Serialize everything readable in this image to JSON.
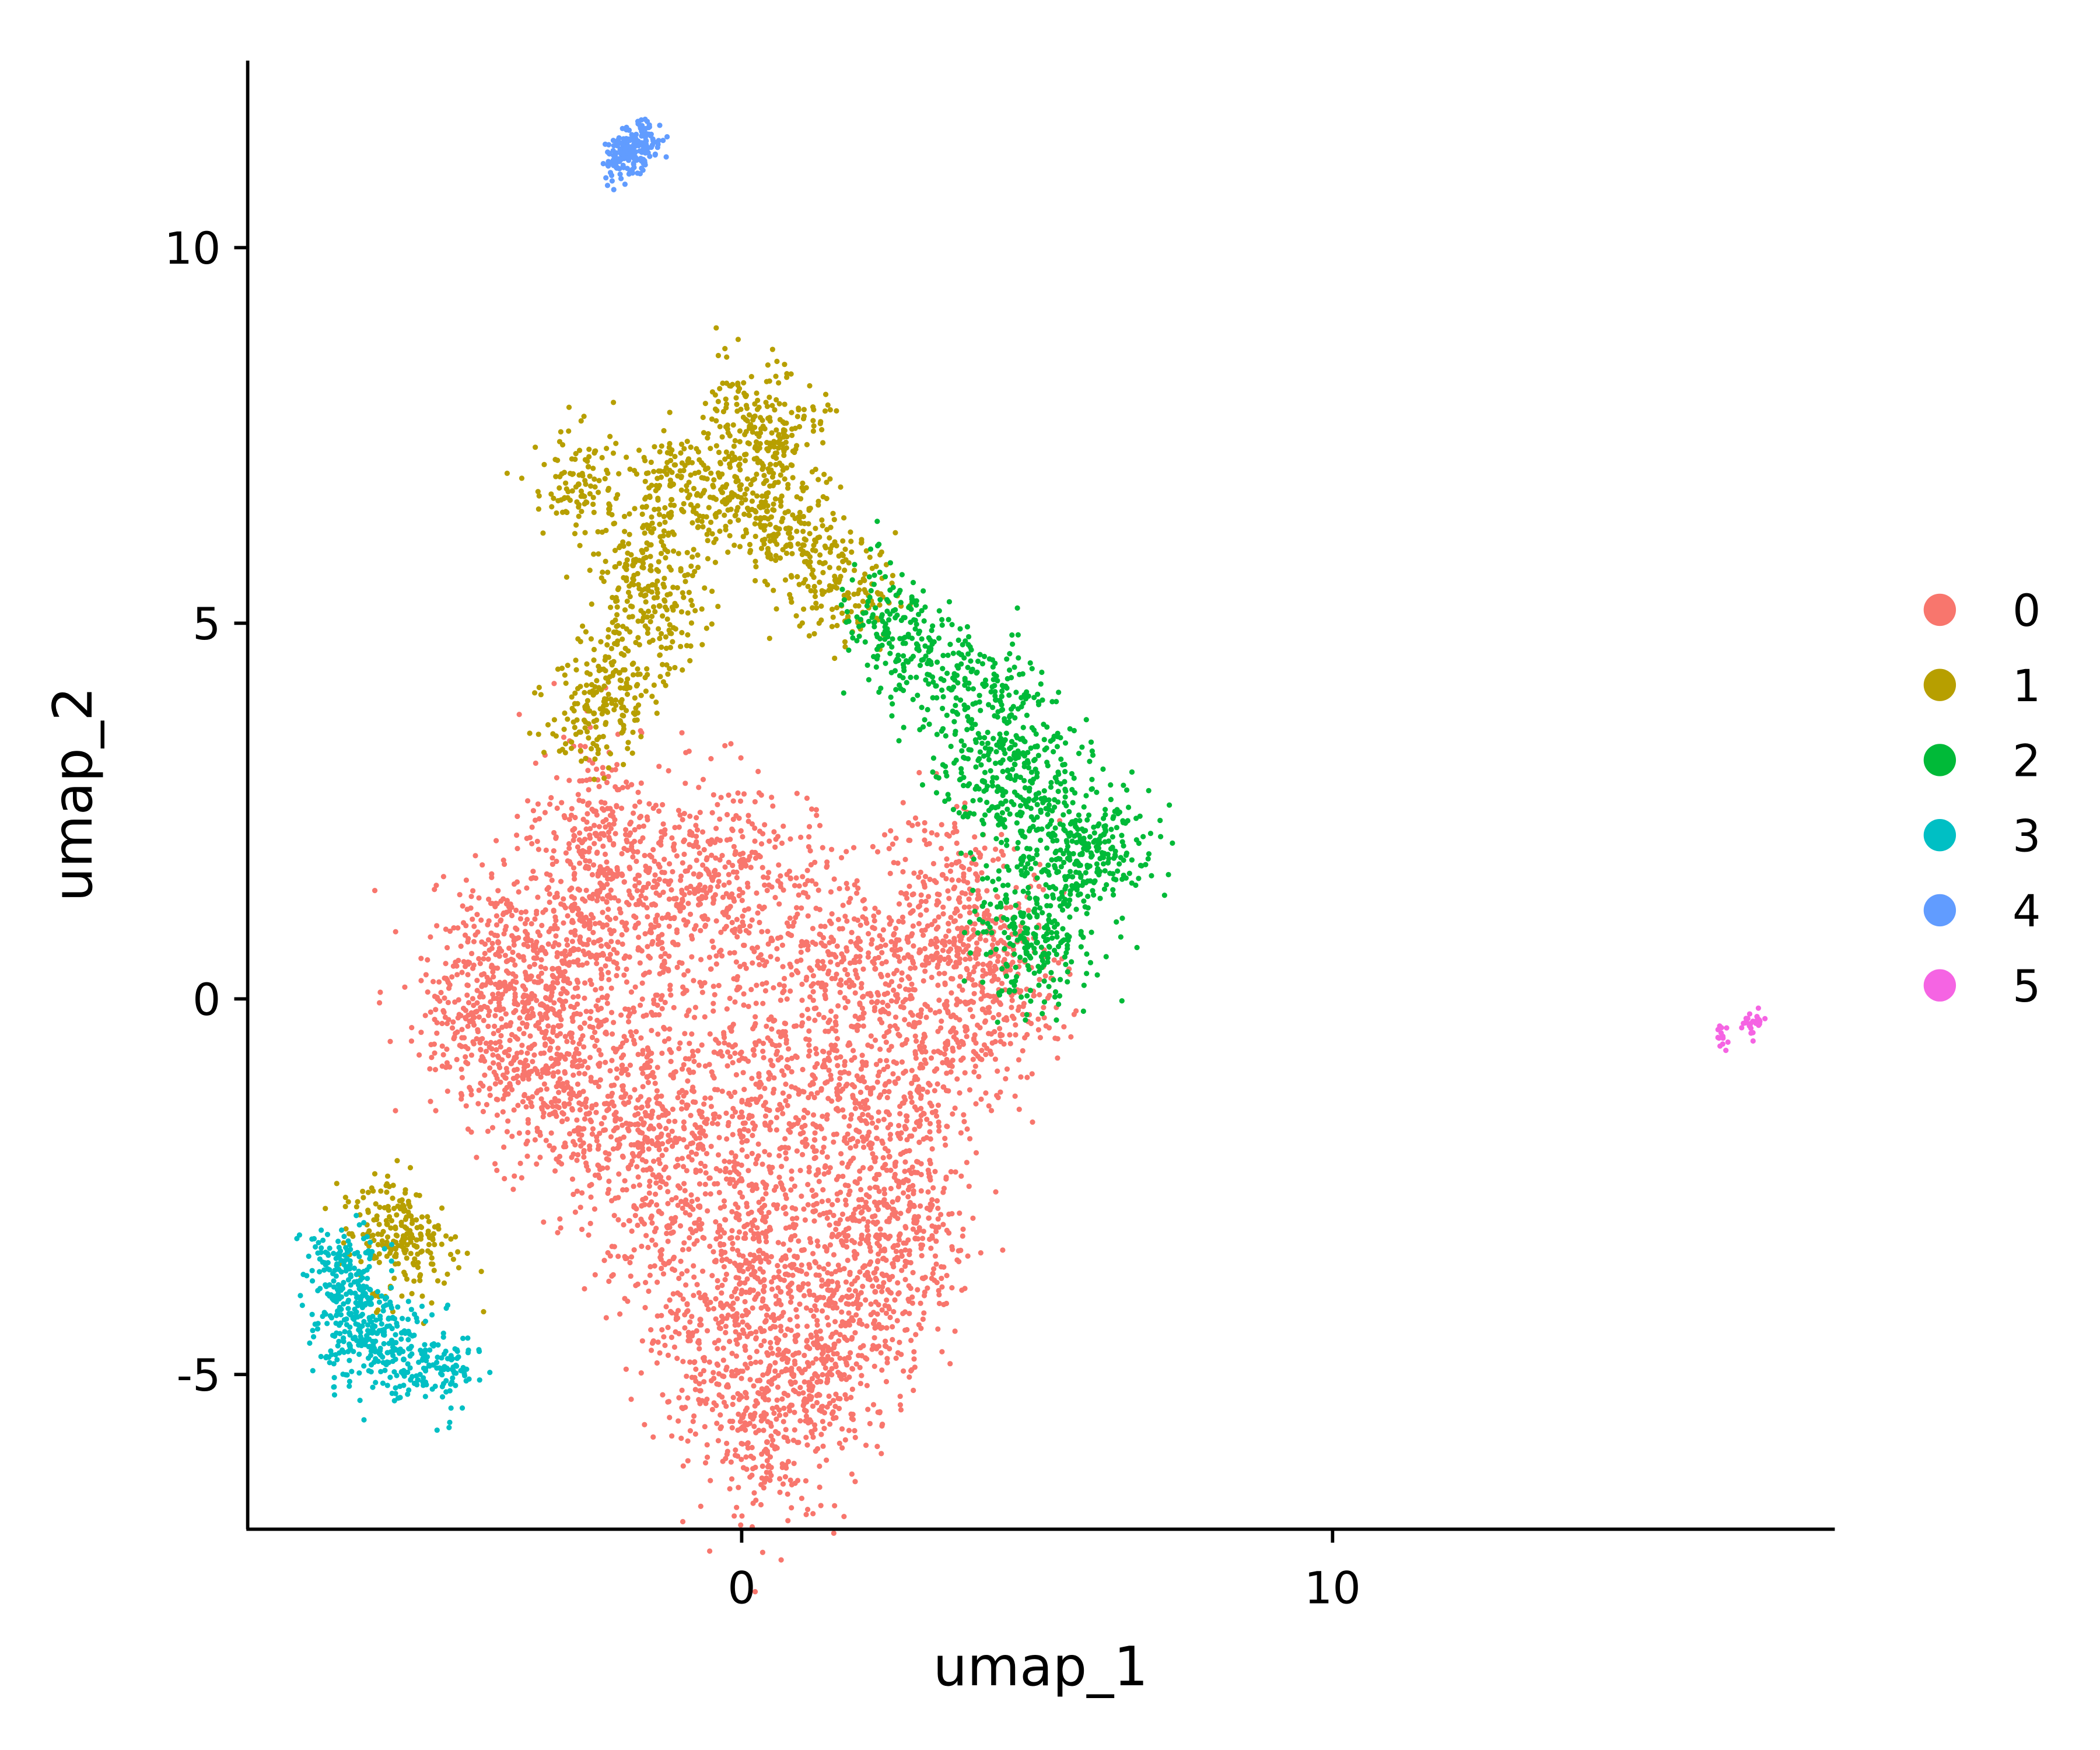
{
  "chart_data": {
    "type": "scatter",
    "xlabel": "umap_1",
    "ylabel": "umap_2",
    "xlim": [
      -8.36,
      18.5
    ],
    "ylim": [
      -7.06,
      12.49
    ],
    "x_ticks": [
      0,
      10
    ],
    "y_ticks": [
      -5,
      0,
      5,
      10
    ],
    "x_tick_labels": [
      "0",
      "10"
    ],
    "y_tick_labels": [
      "-5",
      "0",
      "5",
      "10"
    ],
    "grid": false,
    "legend_position": "right",
    "series": [
      {
        "name": "0",
        "color": "#F8766D",
        "spread": 0.6,
        "points": [
          [
            -3.44,
            -0.32
          ],
          [
            -4.12,
            0.75
          ],
          [
            -2.3,
            1.65
          ],
          [
            -1.6,
            -1.04
          ],
          [
            -3.0,
            -1.4
          ],
          [
            -3.9,
            -0.86
          ],
          [
            -2.5,
            0.75
          ],
          [
            -1.16,
            0.75
          ],
          [
            -0.7,
            1.65
          ],
          [
            0.0,
            1.8
          ],
          [
            1.1,
            0.75
          ],
          [
            2.26,
            0.4
          ],
          [
            3.4,
            0.75
          ],
          [
            4.08,
            -0.14
          ],
          [
            2.94,
            -1.04
          ],
          [
            1.57,
            -0.68
          ],
          [
            0.2,
            -0.68
          ],
          [
            -0.7,
            -1.94
          ],
          [
            1.1,
            -1.94
          ],
          [
            2.5,
            -2.1
          ],
          [
            -1.4,
            -2.83
          ],
          [
            0.2,
            -3.19
          ],
          [
            2.03,
            -3.19
          ],
          [
            -0.7,
            -4.27
          ],
          [
            0.66,
            -3.9
          ],
          [
            2.26,
            -3.9
          ],
          [
            -0.25,
            -5.16
          ],
          [
            1.1,
            -5.34
          ],
          [
            0.43,
            -5.9
          ],
          [
            -2.5,
            2.5
          ],
          [
            -3.2,
            0.4
          ],
          [
            -4.6,
            -0.3
          ],
          [
            -2.07,
            -1.94
          ],
          [
            1.57,
            -4.6
          ],
          [
            2.94,
            -3.19
          ],
          [
            4.3,
            0.4
          ],
          [
            3.4,
            1.65
          ]
        ]
      },
      {
        "name": "1",
        "color": "#B79F00",
        "spread": 0.4,
        "points": [
          [
            0.2,
            7.74
          ],
          [
            0.66,
            7.38
          ],
          [
            -2.76,
            6.85
          ],
          [
            -1.16,
            6.85
          ],
          [
            -1.84,
            5.77
          ],
          [
            -1.39,
            5.23
          ],
          [
            -2.07,
            4.34
          ],
          [
            -2.5,
            3.8
          ],
          [
            0.43,
            6.49
          ],
          [
            1.1,
            5.93
          ],
          [
            -0.48,
            6.67
          ],
          [
            1.8,
            5.4
          ],
          [
            -6.0,
            -3.0
          ],
          [
            -5.5,
            -3.3
          ]
        ]
      },
      {
        "name": "2",
        "color": "#00BA38",
        "spread": 0.45,
        "points": [
          [
            4.76,
            3.26
          ],
          [
            5.2,
            2.19
          ],
          [
            5.67,
            1.83
          ],
          [
            4.08,
            2.9
          ],
          [
            4.76,
            1.1
          ],
          [
            6.13,
            2.19
          ],
          [
            3.17,
            4.5
          ],
          [
            4.3,
            3.98
          ],
          [
            2.48,
            4.87
          ],
          [
            5.0,
            0.75
          ]
        ]
      },
      {
        "name": "3",
        "color": "#00BFC4",
        "spread": 0.3,
        "points": [
          [
            -6.63,
            -3.9
          ],
          [
            -6.17,
            -4.45
          ],
          [
            -5.72,
            -4.8
          ],
          [
            -5.03,
            -4.9
          ],
          [
            -6.85,
            -3.55
          ],
          [
            -6.63,
            -4.62
          ]
        ]
      },
      {
        "name": "4",
        "color": "#619CFF",
        "spread": 0.15,
        "points": [
          [
            -1.84,
            11.33
          ],
          [
            -1.62,
            11.42
          ],
          [
            -2.07,
            11.18
          ]
        ]
      },
      {
        "name": "5",
        "color": "#F564E3",
        "spread": 0.08,
        "points": [
          [
            16.6,
            -0.5
          ],
          [
            17.06,
            -0.36
          ],
          [
            17.2,
            -0.27
          ]
        ]
      }
    ]
  }
}
